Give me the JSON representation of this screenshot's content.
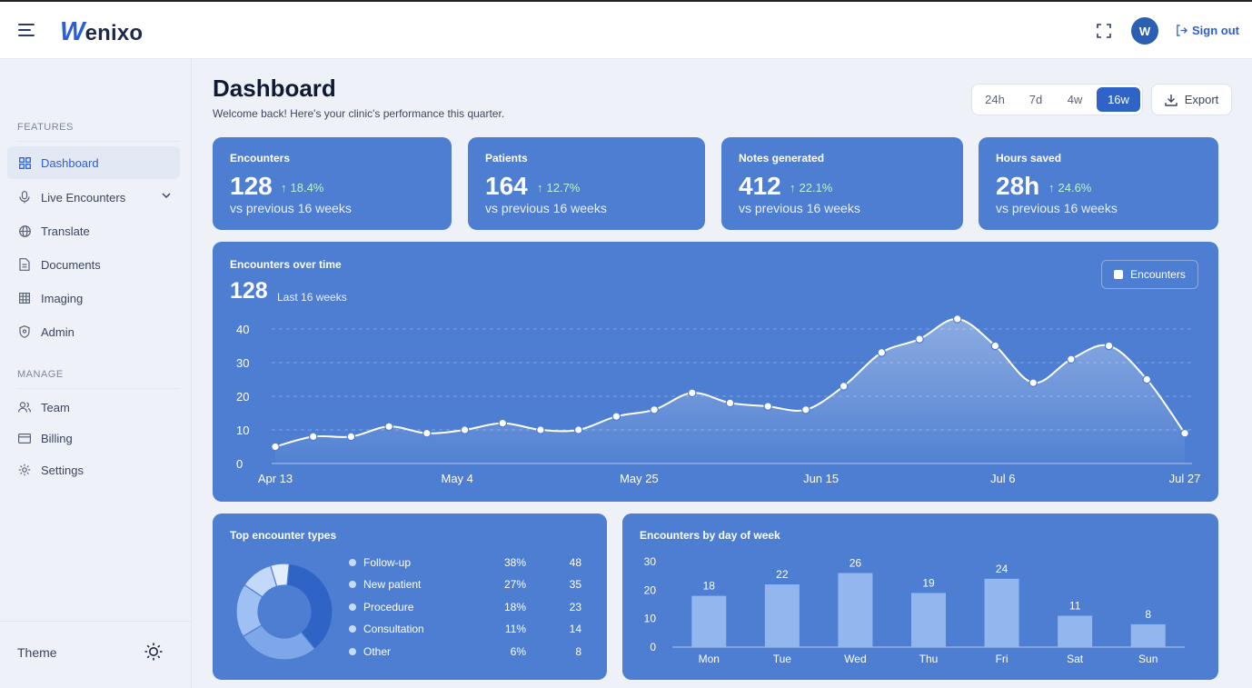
{
  "header": {
    "logo_mark": "W",
    "logo_text": "enixo",
    "avatar_initial": "W",
    "sign_out_label": "Sign out"
  },
  "sidebar": {
    "features_label": "FEATURES",
    "manage_label": "MANAGE",
    "features_items": [
      {
        "label": "Dashboard",
        "icon": "grid-icon",
        "active": true
      },
      {
        "label": "Live Encounters",
        "icon": "microphone-icon",
        "active": false
      },
      {
        "label": "Translate",
        "icon": "globe-icon",
        "active": false
      },
      {
        "label": "Documents",
        "icon": "document-icon",
        "active": false
      },
      {
        "label": "Imaging",
        "icon": "image-grid-icon",
        "active": false
      },
      {
        "label": "Admin",
        "icon": "shield-icon",
        "active": false
      }
    ],
    "manage_items": [
      {
        "label": "Team",
        "icon": "users-icon"
      },
      {
        "label": "Billing",
        "icon": "credit-card-icon"
      },
      {
        "label": "Settings",
        "icon": "gear-icon"
      }
    ],
    "theme_label": "Theme"
  },
  "page": {
    "title": "Dashboard",
    "subtitle": "Welcome back! Here's your clinic's performance this quarter.",
    "ranges": [
      "24h",
      "7d",
      "4w",
      "16w"
    ],
    "active_range": "16w",
    "export_label": "Export"
  },
  "kpis": [
    {
      "label": "Encounters",
      "value": "128",
      "delta": "18.4%",
      "note": "vs previous 16 weeks"
    },
    {
      "label": "Patients",
      "value": "164",
      "delta": "12.7%",
      "note": "vs previous 16 weeks"
    },
    {
      "label": "Notes generated",
      "value": "412",
      "delta": "22.1%",
      "note": "vs previous 16 weeks"
    },
    {
      "label": "Hours saved",
      "value": "28h",
      "delta": "24.6%",
      "note": "vs previous 16 weeks"
    }
  ],
  "encounters_chart": {
    "title": "Encounters over time",
    "total": "128",
    "range_label": "Last 16 weeks",
    "legend_label": "Encounters"
  },
  "types_card": {
    "title": "Top encounter types"
  },
  "weekday_card": {
    "title": "Encounters by day of week"
  },
  "colors": {
    "accent": "#2b5fd9",
    "card": "#4d7ed1",
    "positive": "#bff3d2"
  },
  "chart_data": [
    {
      "type": "area",
      "title": "Encounters over time",
      "series": [
        {
          "name": "Encounters",
          "values": [
            5,
            8,
            8,
            11,
            9,
            10,
            12,
            10,
            10,
            14,
            16,
            21,
            18,
            17,
            16,
            23,
            33,
            37,
            43,
            35,
            24,
            31,
            35,
            25,
            9
          ]
        }
      ],
      "x_positions": [
        0,
        2,
        4,
        6,
        8,
        10,
        12,
        14,
        16,
        18,
        20,
        22,
        24,
        26,
        28,
        30,
        32,
        34,
        36,
        38,
        40,
        42,
        44,
        46,
        48
      ],
      "x_tick_labels": [
        "Apr 13",
        "May 4",
        "May 25",
        "Jun 15",
        "Jul 6",
        "Jul 27"
      ],
      "ylim": [
        0,
        40
      ],
      "yticks": [
        0,
        10,
        20,
        30,
        40
      ],
      "grid": true
    },
    {
      "type": "pie",
      "title": "Top encounter types",
      "categories": [
        "Follow-up",
        "New patient",
        "Procedure",
        "Consultation",
        "Other"
      ],
      "percent_labels": [
        "38%",
        "27%",
        "18%",
        "11%",
        "6%"
      ],
      "values": [
        48,
        35,
        23,
        14,
        8
      ],
      "colors": [
        "#2f64c6",
        "#7ea7e9",
        "#9fc0f3",
        "#c3d8fa",
        "#e3edfd"
      ]
    },
    {
      "type": "bar",
      "title": "Encounters by day of week",
      "categories": [
        "Mon",
        "Tue",
        "Wed",
        "Thu",
        "Fri",
        "Sat",
        "Sun"
      ],
      "values": [
        18,
        22,
        26,
        19,
        24,
        11,
        8
      ],
      "ylim": [
        0,
        30
      ],
      "yticks": [
        0,
        10,
        20,
        30
      ]
    }
  ]
}
